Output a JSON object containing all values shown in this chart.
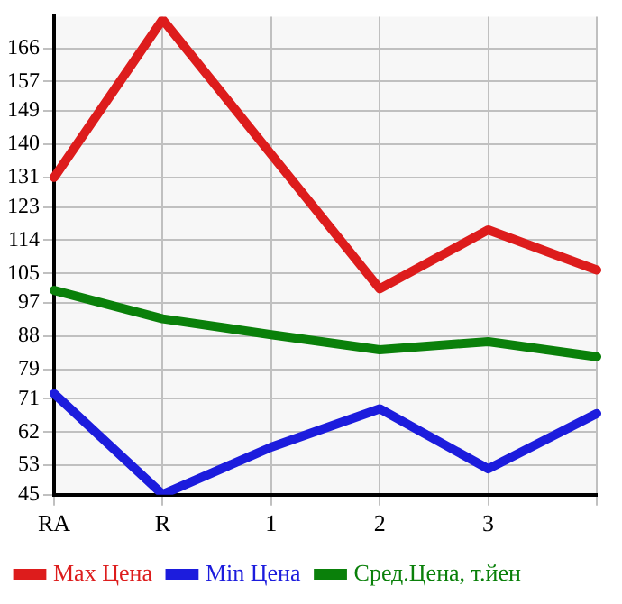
{
  "chart_data": {
    "type": "line",
    "categories": [
      "RA",
      "R",
      "1",
      "2",
      "3",
      null
    ],
    "series": [
      {
        "name": "Max Цена",
        "color": "#dd1c1c",
        "values": [
          131,
          173.8,
          137.3,
          100.8,
          116.8,
          105.9
        ]
      },
      {
        "name": "Min Цена",
        "color": "#1c1cdd",
        "values": [
          72.4,
          45.1,
          57.9,
          68.3,
          52,
          67
        ]
      },
      {
        "name": "Сред.Цена, т.йен",
        "color": "#0a800a",
        "values": [
          100.4,
          92.7,
          88.4,
          84.3,
          86.5,
          82.4
        ]
      }
    ],
    "ylim": [
      45,
      174.6
    ],
    "yticks": [
      45,
      53,
      62,
      71,
      79,
      88,
      97,
      105,
      114,
      123,
      131,
      140,
      149,
      157,
      166
    ],
    "grid": true,
    "legend": "bottom",
    "marker": "none",
    "line_style": "solid"
  }
}
